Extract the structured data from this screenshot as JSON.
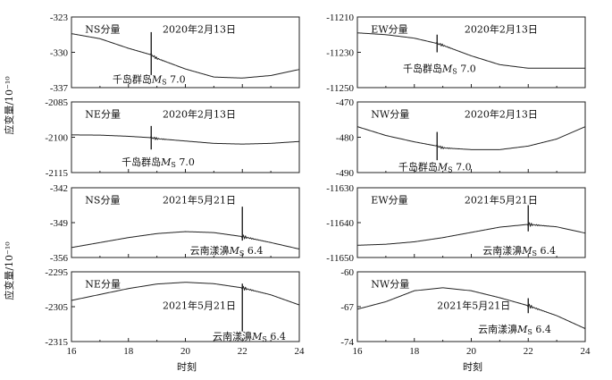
{
  "y_axis_title": "应变量/10⁻¹⁰",
  "x_axis_title": "时刻",
  "chart_data": [
    {
      "type": "line",
      "component": "NS分量",
      "date": "2020年2月13日",
      "event_prefix": "千岛群岛",
      "event_mag": "7.0",
      "ylim": [
        -337,
        -323
      ],
      "yticks": [
        -323,
        -330,
        -337
      ],
      "xlim": [
        16,
        24
      ],
      "xticks": [
        16,
        18,
        20,
        22,
        24
      ],
      "show_xticklabels": false,
      "x": [
        16,
        17,
        18,
        18.8,
        19,
        20,
        21,
        22,
        23,
        24
      ],
      "y": [
        -326.3,
        -327.3,
        -329.2,
        -330.5,
        -331.2,
        -333.3,
        -334.9,
        -335.1,
        -334.6,
        -333.4
      ],
      "spike": {
        "x": 18.8,
        "up": 4.5,
        "down": 4.0
      }
    },
    {
      "type": "line",
      "component": "EW分量",
      "date": "2020年2月13日",
      "event_prefix": "千岛群岛",
      "event_mag": "7.0",
      "ylim": [
        -11250,
        -11210
      ],
      "yticks": [
        -11210,
        -11230,
        -11250
      ],
      "xlim": [
        16,
        24
      ],
      "xticks": [
        16,
        18,
        20,
        22,
        24
      ],
      "show_xticklabels": false,
      "x": [
        16,
        17,
        18,
        18.8,
        19,
        20,
        21,
        22,
        23,
        24
      ],
      "y": [
        -11219,
        -11220,
        -11222,
        -11225,
        -11226,
        -11232,
        -11237,
        -11239,
        -11239,
        -11239
      ],
      "spike": {
        "x": 18.8,
        "up": 5,
        "down": 5
      }
    },
    {
      "type": "line",
      "component": "NE分量",
      "date": "2020年2月13日",
      "event_prefix": "千岛群岛",
      "event_mag": "7.0",
      "ylim": [
        -2115,
        -2085
      ],
      "yticks": [
        -2085,
        -2100,
        -2115
      ],
      "xlim": [
        16,
        24
      ],
      "xticks": [
        16,
        18,
        20,
        22,
        24
      ],
      "show_xticklabels": false,
      "x": [
        16,
        17,
        18,
        18.8,
        19,
        20,
        21,
        22,
        23,
        24
      ],
      "y": [
        -2099.0,
        -2099.1,
        -2099.6,
        -2100.2,
        -2100.6,
        -2101.6,
        -2102.6,
        -2102.9,
        -2102.6,
        -2101.8
      ],
      "spike": {
        "x": 18.8,
        "up": 5,
        "down": 5
      }
    },
    {
      "type": "line",
      "component": "NW分量",
      "date": "2020年2月13日",
      "event_prefix": "千岛群岛",
      "event_mag": "7.0",
      "ylim": [
        -490,
        -470
      ],
      "yticks": [
        -470,
        -480,
        -490
      ],
      "xlim": [
        16,
        24
      ],
      "xticks": [
        16,
        18,
        20,
        22,
        24
      ],
      "show_xticklabels": false,
      "x": [
        16,
        17,
        18,
        18.8,
        19,
        20,
        21,
        22,
        23,
        24
      ],
      "y": [
        -477.0,
        -479.5,
        -481.3,
        -482.5,
        -483.0,
        -483.5,
        -483.5,
        -482.5,
        -480.5,
        -477.0
      ],
      "spike": {
        "x": 18.8,
        "up": 4,
        "down": 4
      }
    },
    {
      "type": "line",
      "component": "NS分量",
      "date": "2021年5月21日",
      "event_prefix": "云南漾濞",
      "event_mag": "6.4",
      "ylim": [
        -356,
        -342
      ],
      "yticks": [
        -342,
        -349,
        -356
      ],
      "xlim": [
        16,
        24
      ],
      "xticks": [
        16,
        18,
        20,
        22,
        24
      ],
      "show_xticklabels": false,
      "x": [
        16,
        17,
        18,
        19,
        20,
        21,
        22,
        23,
        24
      ],
      "y": [
        -354.0,
        -353.0,
        -352.0,
        -351.2,
        -350.8,
        -351.0,
        -351.8,
        -353.0,
        -354.3
      ],
      "spike": {
        "x": 22.0,
        "up": 6.0,
        "down": 0.8
      }
    },
    {
      "type": "line",
      "component": "EW分量",
      "date": "2021年5月21日",
      "event_prefix": "云南漾濞",
      "event_mag": "6.4",
      "ylim": [
        -11650,
        -11630
      ],
      "yticks": [
        -11630,
        -11640,
        -11650
      ],
      "xlim": [
        16,
        24
      ],
      "xticks": [
        16,
        18,
        20,
        22,
        24
      ],
      "show_xticklabels": false,
      "x": [
        16,
        17,
        18,
        19,
        20,
        21,
        22,
        23,
        24
      ],
      "y": [
        -11646.5,
        -11646.2,
        -11645.5,
        -11644.3,
        -11642.8,
        -11641.3,
        -11640.5,
        -11641.2,
        -11643.0
      ],
      "spike": {
        "x": 22.0,
        "up": 5.5,
        "down": 2.0
      }
    },
    {
      "type": "line",
      "component": "NE分量",
      "date": "2021年5月21日",
      "event_prefix": "云南漾濞",
      "event_mag": "6.4",
      "ylim": [
        -2315,
        -2295
      ],
      "yticks": [
        -2295,
        -2305,
        -2315
      ],
      "xlim": [
        16,
        24
      ],
      "xticks": [
        16,
        18,
        20,
        22,
        24
      ],
      "show_xticklabels": true,
      "x": [
        16,
        17,
        18,
        19,
        20,
        21,
        22,
        23,
        24
      ],
      "y": [
        -2303.2,
        -2301.5,
        -2299.8,
        -2298.5,
        -2298.0,
        -2298.4,
        -2299.6,
        -2301.6,
        -2304.5
      ],
      "spike": {
        "x": 22.0,
        "up": 1.2,
        "down": 12.5
      }
    },
    {
      "type": "line",
      "component": "NW分量",
      "date": "2021年5月21日",
      "event_prefix": "云南漾濞",
      "event_mag": "6.4",
      "ylim": [
        -74,
        -60
      ],
      "yticks": [
        -60,
        -67,
        -74
      ],
      "xlim": [
        16,
        24
      ],
      "xticks": [
        16,
        18,
        20,
        22,
        24
      ],
      "show_xticklabels": true,
      "x": [
        16,
        17,
        18,
        19,
        20,
        21,
        22,
        23,
        24
      ],
      "y": [
        -67.5,
        -66.0,
        -63.8,
        -63.2,
        -63.8,
        -65.2,
        -66.8,
        -68.8,
        -71.4
      ],
      "spike": {
        "x": 22.0,
        "up": 1.5,
        "down": 1.5
      }
    }
  ]
}
